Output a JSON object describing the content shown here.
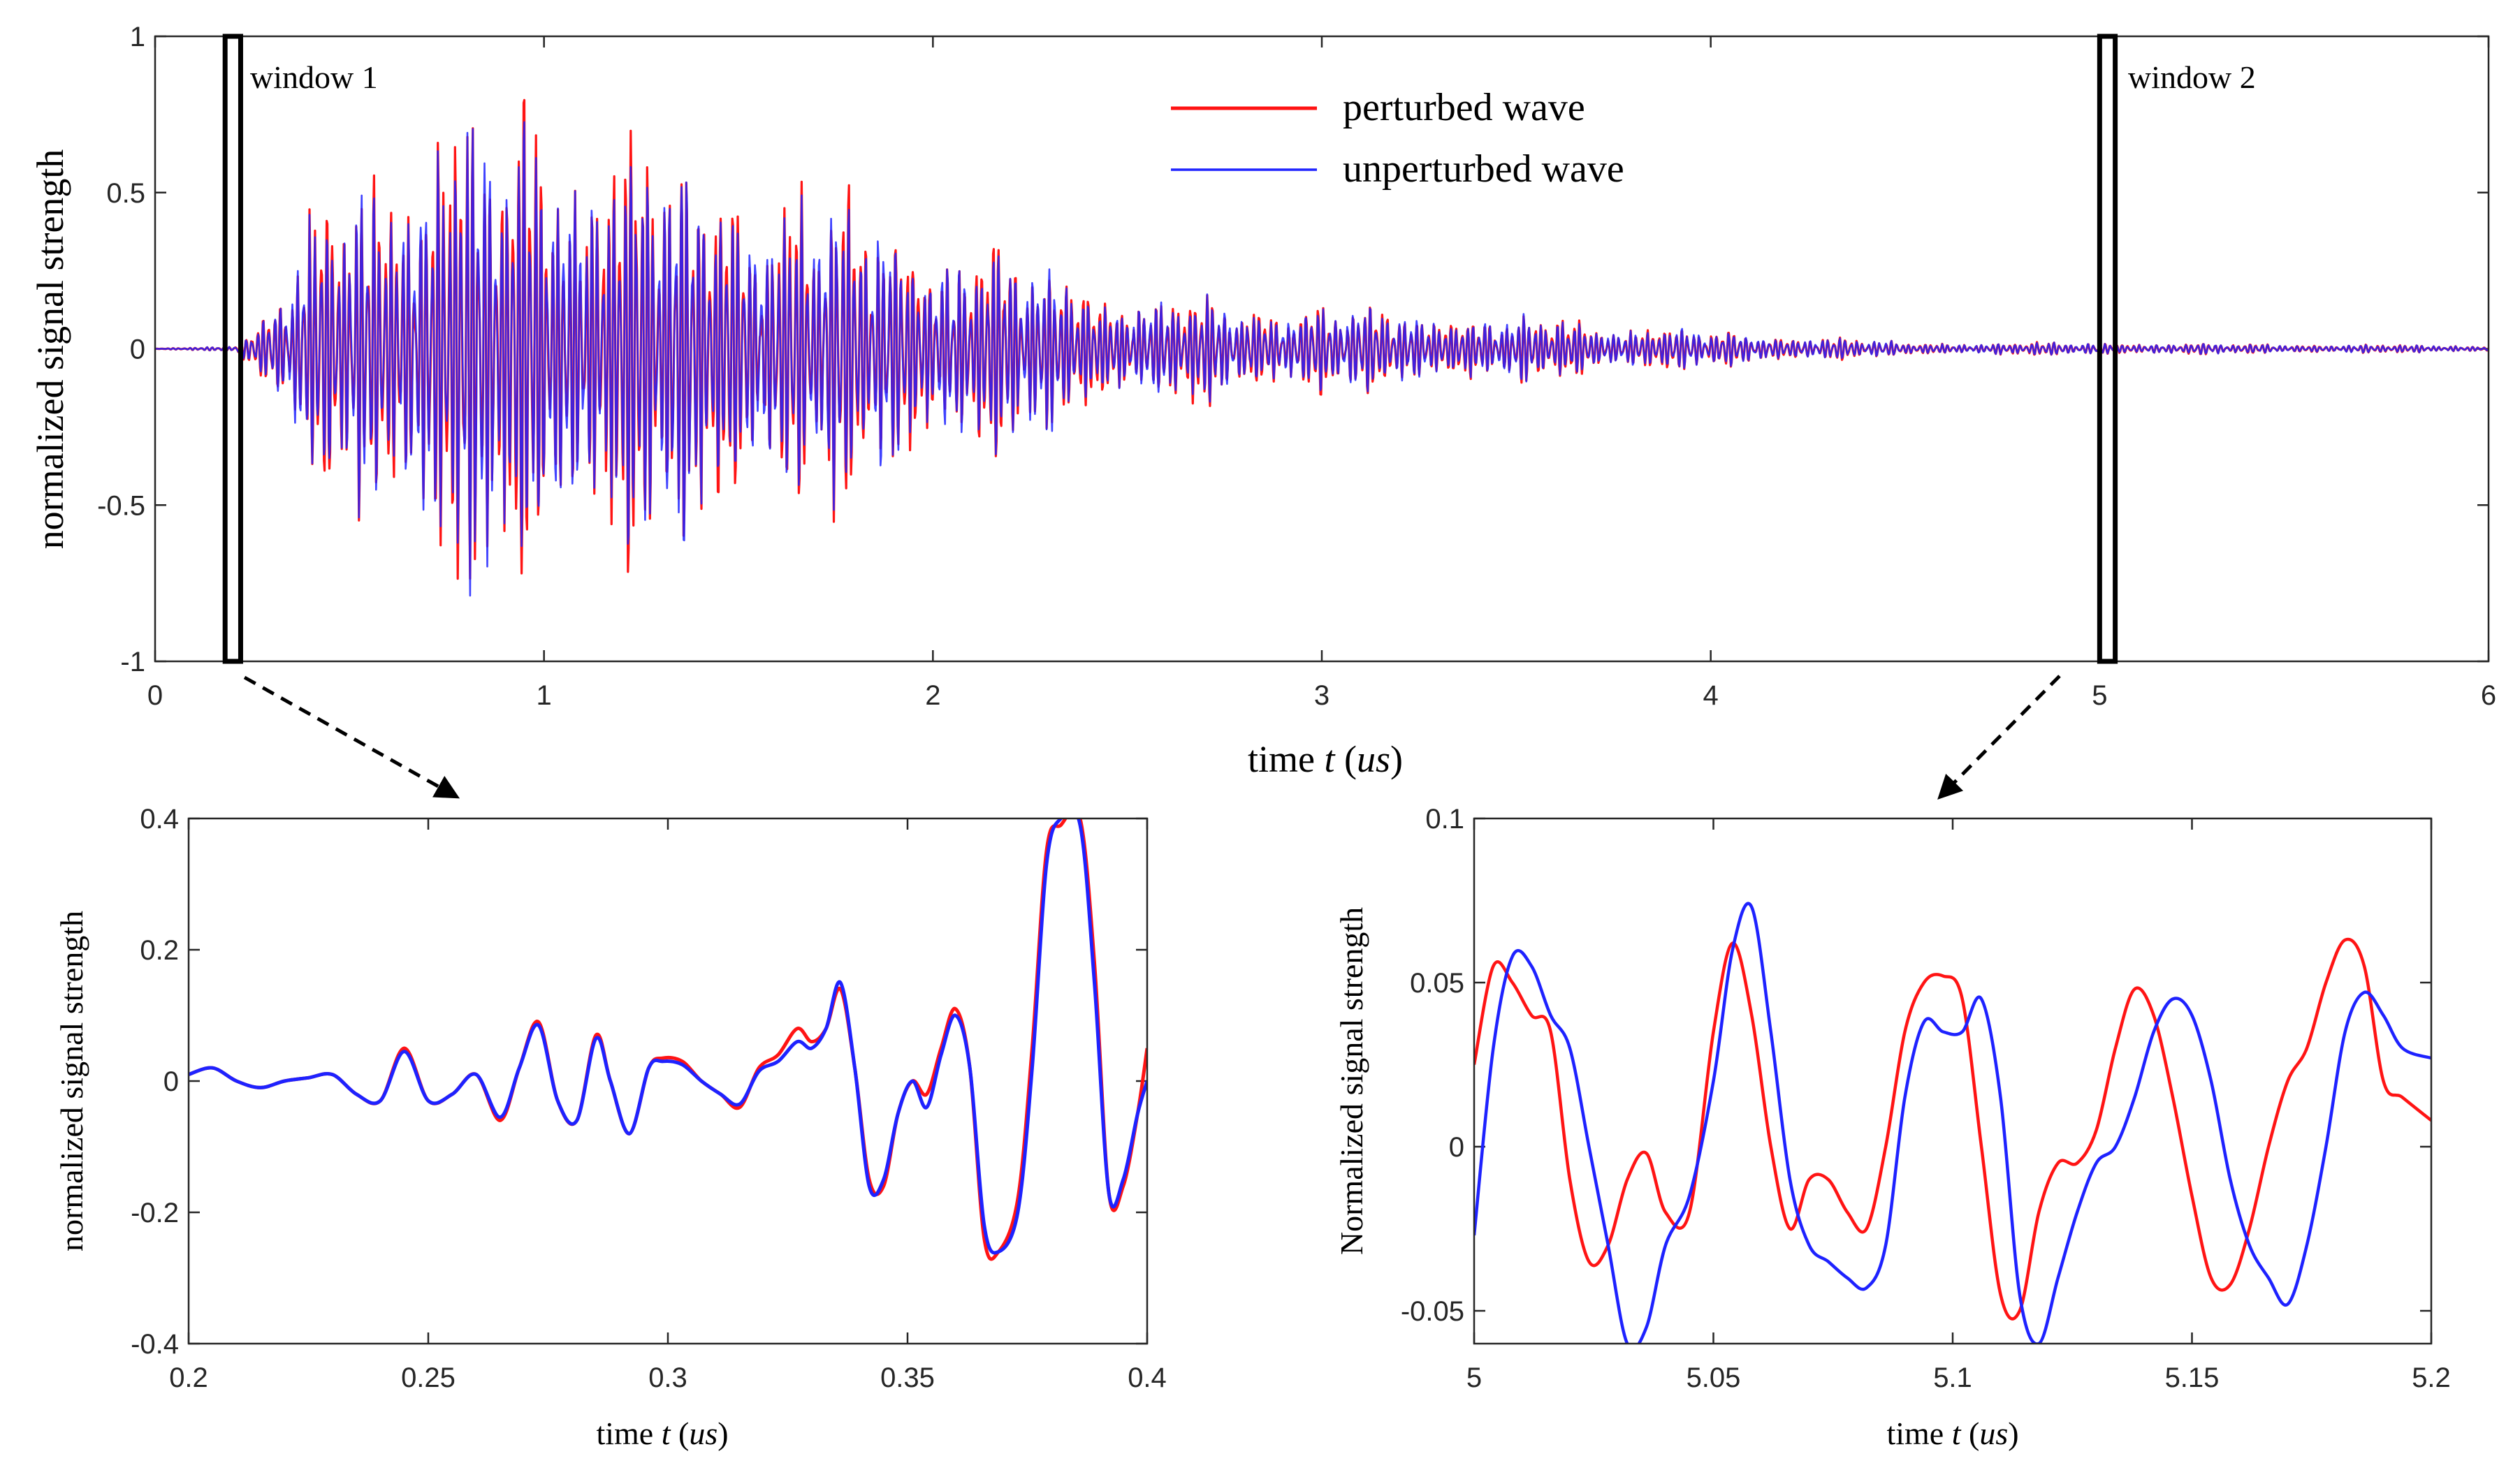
{
  "colors": {
    "perturbed": "#ff1414",
    "unperturbed": "#1e22ff",
    "axis": "#262626"
  },
  "chart_data": [
    {
      "id": "main",
      "type": "line",
      "xlabel_text": "time ",
      "xlabel_var": "t",
      "xlabel_unit": "us",
      "ylabel": "normalized signal strength",
      "xlim": [
        0,
        6
      ],
      "ylim": [
        -1,
        1
      ],
      "xticks": [
        0,
        1,
        2,
        3,
        4,
        5,
        6
      ],
      "xtick_labels": [
        "0",
        "1",
        "2",
        "3",
        "4",
        "5",
        "6"
      ],
      "yticks": [
        -1,
        -0.5,
        0,
        0.5,
        1
      ],
      "ytick_labels": [
        "-1",
        "-0.5",
        "0",
        "0.5",
        "1"
      ],
      "legend": [
        "perturbed wave",
        "unperturbed wave"
      ],
      "legend_position": "top-center",
      "windows": [
        {
          "label": "window 1",
          "x": [
            0.18,
            0.22
          ],
          "y": [
            -1,
            1
          ]
        },
        {
          "label": "window 2",
          "x": [
            5.0,
            5.04
          ],
          "y": [
            -1,
            1
          ]
        }
      ],
      "envelope": {
        "t": [
          0,
          0.2,
          0.3,
          0.4,
          0.5,
          0.6,
          0.75,
          0.9,
          1.1,
          1.3,
          1.5,
          1.7,
          2.0,
          2.3,
          2.5,
          2.8,
          3.0,
          3.3,
          3.6,
          4.0,
          4.3,
          4.5,
          5.0,
          5.5,
          6.0
        ],
        "amp": [
          0.0,
          0.01,
          0.15,
          0.45,
          0.55,
          0.62,
          0.95,
          0.75,
          0.82,
          0.7,
          0.6,
          0.55,
          0.4,
          0.3,
          0.18,
          0.16,
          0.15,
          0.12,
          0.1,
          0.06,
          0.04,
          0.02,
          0.02,
          0.015,
          0.01
        ]
      },
      "series": [
        {
          "name": "perturbed wave",
          "color_key": "perturbed"
        },
        {
          "name": "unperturbed wave",
          "color_key": "unperturbed"
        }
      ]
    },
    {
      "id": "zoom1",
      "type": "line",
      "xlabel_text": "time ",
      "xlabel_var": "t",
      "xlabel_unit": "us",
      "ylabel": "normalized signal strength",
      "xlim": [
        0.2,
        0.4
      ],
      "ylim": [
        -0.4,
        0.4
      ],
      "xticks": [
        0.2,
        0.25,
        0.3,
        0.35,
        0.4
      ],
      "xtick_labels": [
        "0.2",
        "0.25",
        "0.3",
        "0.35",
        "0.4"
      ],
      "yticks": [
        -0.4,
        -0.2,
        0,
        0.2,
        0.4
      ],
      "ytick_labels": [
        "-0.4",
        "-0.2",
        "0",
        "0.2",
        "0.4"
      ],
      "series": [
        {
          "name": "perturbed wave",
          "color_key": "perturbed",
          "x": [
            0.2,
            0.205,
            0.21,
            0.215,
            0.22,
            0.225,
            0.23,
            0.235,
            0.24,
            0.245,
            0.25,
            0.255,
            0.26,
            0.265,
            0.269,
            0.273,
            0.277,
            0.281,
            0.285,
            0.288,
            0.292,
            0.296,
            0.299,
            0.303,
            0.307,
            0.311,
            0.315,
            0.319,
            0.323,
            0.327,
            0.33,
            0.333,
            0.336,
            0.339,
            0.342,
            0.345,
            0.348,
            0.351,
            0.354,
            0.357,
            0.36,
            0.363,
            0.366,
            0.369,
            0.373,
            0.376,
            0.379,
            0.382,
            0.386,
            0.389,
            0.392,
            0.395,
            0.398,
            0.4
          ],
          "y": [
            0.01,
            0.02,
            0.0,
            -0.01,
            0.0,
            0.005,
            0.01,
            -0.02,
            -0.03,
            0.05,
            -0.03,
            -0.02,
            0.01,
            -0.06,
            0.02,
            0.09,
            -0.03,
            -0.06,
            0.07,
            0.0,
            -0.08,
            0.02,
            0.035,
            0.03,
            0.0,
            -0.02,
            -0.04,
            0.02,
            0.04,
            0.08,
            0.06,
            0.08,
            0.14,
            0.02,
            -0.15,
            -0.16,
            -0.05,
            0.0,
            -0.02,
            0.05,
            0.11,
            0.02,
            -0.24,
            -0.26,
            -0.18,
            0.05,
            0.35,
            0.39,
            0.4,
            0.18,
            -0.17,
            -0.16,
            -0.05,
            0.05
          ]
        },
        {
          "name": "unperturbed wave",
          "color_key": "unperturbed",
          "x": [
            0.2,
            0.205,
            0.21,
            0.215,
            0.22,
            0.225,
            0.23,
            0.235,
            0.24,
            0.245,
            0.25,
            0.255,
            0.26,
            0.265,
            0.269,
            0.273,
            0.277,
            0.281,
            0.285,
            0.288,
            0.292,
            0.296,
            0.299,
            0.303,
            0.307,
            0.311,
            0.315,
            0.319,
            0.323,
            0.327,
            0.33,
            0.333,
            0.336,
            0.339,
            0.342,
            0.345,
            0.348,
            0.351,
            0.354,
            0.357,
            0.36,
            0.363,
            0.366,
            0.369,
            0.373,
            0.376,
            0.379,
            0.382,
            0.386,
            0.389,
            0.392,
            0.395,
            0.398,
            0.4
          ],
          "y": [
            0.01,
            0.02,
            0.0,
            -0.01,
            0.0,
            0.005,
            0.01,
            -0.02,
            -0.03,
            0.045,
            -0.03,
            -0.02,
            0.01,
            -0.055,
            0.02,
            0.085,
            -0.03,
            -0.06,
            0.065,
            0.0,
            -0.08,
            0.02,
            0.03,
            0.025,
            0.0,
            -0.02,
            -0.035,
            0.015,
            0.03,
            0.06,
            0.05,
            0.08,
            0.15,
            0.02,
            -0.16,
            -0.15,
            -0.05,
            0.0,
            -0.04,
            0.04,
            0.1,
            0.02,
            -0.22,
            -0.26,
            -0.2,
            0.02,
            0.33,
            0.4,
            0.39,
            0.15,
            -0.17,
            -0.15,
            -0.05,
            0.0
          ]
        }
      ]
    },
    {
      "id": "zoom2",
      "type": "line",
      "xlabel_text": "time ",
      "xlabel_var": "t",
      "xlabel_unit": "us",
      "ylabel": "Normalized signal strength",
      "xlim": [
        5,
        5.2
      ],
      "ylim": [
        -0.06,
        0.1
      ],
      "xticks": [
        5,
        5.05,
        5.1,
        5.15,
        5.2
      ],
      "xtick_labels": [
        "5",
        "5.05",
        "5.1",
        "5.15",
        "5.2"
      ],
      "yticks": [
        -0.05,
        0,
        0.05,
        0.1
      ],
      "ytick_labels": [
        "-0.05",
        "0",
        "0.05",
        "0.1"
      ],
      "series": [
        {
          "name": "perturbed wave",
          "color_key": "perturbed",
          "x": [
            5.0,
            5.004,
            5.008,
            5.012,
            5.016,
            5.02,
            5.024,
            5.028,
            5.032,
            5.036,
            5.04,
            5.045,
            5.05,
            5.054,
            5.058,
            5.062,
            5.066,
            5.07,
            5.074,
            5.078,
            5.082,
            5.086,
            5.09,
            5.094,
            5.098,
            5.102,
            5.106,
            5.11,
            5.114,
            5.118,
            5.122,
            5.126,
            5.13,
            5.134,
            5.138,
            5.142,
            5.146,
            5.15,
            5.154,
            5.158,
            5.162,
            5.166,
            5.17,
            5.174,
            5.178,
            5.182,
            5.186,
            5.19,
            5.194,
            5.2
          ],
          "y": [
            0.025,
            0.055,
            0.05,
            0.04,
            0.035,
            -0.01,
            -0.035,
            -0.03,
            -0.01,
            -0.002,
            -0.02,
            -0.02,
            0.035,
            0.062,
            0.04,
            0.0,
            -0.025,
            -0.01,
            -0.01,
            -0.02,
            -0.025,
            0.0,
            0.035,
            0.05,
            0.052,
            0.045,
            0.0,
            -0.045,
            -0.05,
            -0.02,
            -0.005,
            -0.005,
            0.005,
            0.03,
            0.048,
            0.04,
            0.015,
            -0.015,
            -0.04,
            -0.042,
            -0.025,
            0.0,
            0.02,
            0.03,
            0.05,
            0.063,
            0.055,
            0.02,
            0.015,
            0.008
          ]
        },
        {
          "name": "unperturbed wave",
          "color_key": "unperturbed",
          "x": [
            5.0,
            5.004,
            5.008,
            5.012,
            5.016,
            5.02,
            5.024,
            5.028,
            5.032,
            5.036,
            5.04,
            5.045,
            5.05,
            5.054,
            5.058,
            5.062,
            5.066,
            5.07,
            5.074,
            5.078,
            5.082,
            5.086,
            5.09,
            5.094,
            5.098,
            5.102,
            5.106,
            5.11,
            5.114,
            5.118,
            5.122,
            5.126,
            5.13,
            5.134,
            5.138,
            5.142,
            5.146,
            5.15,
            5.154,
            5.158,
            5.162,
            5.166,
            5.17,
            5.174,
            5.178,
            5.182,
            5.186,
            5.19,
            5.194,
            5.2
          ],
          "y": [
            -0.027,
            0.03,
            0.058,
            0.055,
            0.04,
            0.03,
            0.0,
            -0.03,
            -0.06,
            -0.055,
            -0.03,
            -0.015,
            0.02,
            0.06,
            0.073,
            0.035,
            -0.01,
            -0.03,
            -0.035,
            -0.04,
            -0.043,
            -0.03,
            0.015,
            0.038,
            0.035,
            0.035,
            0.045,
            0.015,
            -0.045,
            -0.06,
            -0.04,
            -0.02,
            -0.005,
            0.0,
            0.015,
            0.035,
            0.045,
            0.04,
            0.02,
            -0.01,
            -0.03,
            -0.04,
            -0.048,
            -0.03,
            0.0,
            0.035,
            0.047,
            0.04,
            0.03,
            0.027
          ]
        }
      ]
    }
  ]
}
